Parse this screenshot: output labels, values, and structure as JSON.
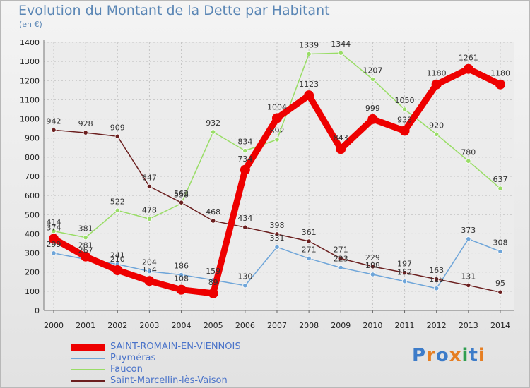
{
  "header": {
    "title": "Evolution du Montant de la Dette par Habitant",
    "subtitle": "(en €)"
  },
  "logo": {
    "text": "Proxiti",
    "colors": [
      "#3d7cc9",
      "#e67e22",
      "#3d7cc9",
      "#e67e22",
      "#2e9e4f",
      "#3d7cc9",
      "#e67e22"
    ]
  },
  "chart_data": {
    "type": "line",
    "title": "Evolution du Montant de la Dette par Habitant",
    "subtitle": "(en €)",
    "xlabel": "",
    "ylabel": "",
    "ylim": [
      0,
      1400
    ],
    "yticks": [
      0,
      100,
      200,
      300,
      400,
      500,
      600,
      700,
      800,
      900,
      1000,
      1100,
      1200,
      1300,
      1400
    ],
    "grid": true,
    "legend_position": "bottom-left",
    "x": [
      "2000",
      "2001",
      "2002",
      "2003",
      "2004",
      "2005",
      "2006",
      "2007",
      "2008",
      "2009",
      "2010",
      "2011",
      "2012",
      "2013",
      "2014"
    ],
    "series": [
      {
        "name": "SAINT-ROMAIN-EN-VIENNOIS",
        "color": "#ee0000",
        "width": 9,
        "marker": 7,
        "values": [
          374,
          281,
          210,
          154,
          108,
          89,
          734,
          1004,
          1123,
          843,
          999,
          938,
          1180,
          1261,
          1180
        ],
        "labels": [
          "374",
          "281",
          "210",
          "154",
          "108",
          "89",
          "734",
          "1004",
          "1123",
          "843",
          "999",
          "938",
          "1180",
          "1261",
          "1180"
        ]
      },
      {
        "name": "Puyméras",
        "color": "#6ea5d9",
        "width": 1.5,
        "marker": 3.2,
        "values": [
          299,
          267,
          241,
          204,
          186,
          159,
          130,
          331,
          271,
          223,
          188,
          152,
          115,
          373,
          308
        ],
        "labels": [
          "299",
          "267",
          "241",
          "204",
          "186",
          "159",
          "130",
          "331",
          "271",
          "223",
          "188",
          "152",
          "115",
          "373",
          "308"
        ]
      },
      {
        "name": "Faucon",
        "color": "#99dd66",
        "width": 1.5,
        "marker": 3.2,
        "values": [
          414,
          381,
          522,
          478,
          558,
          932,
          834,
          892,
          1339,
          1344,
          1207,
          1050,
          920,
          780,
          637
        ],
        "labels": [
          "414",
          "381",
          "522",
          "478",
          "558",
          "932",
          "834",
          "892",
          "1339",
          "1344",
          "1207",
          "1050",
          "920",
          "780",
          "637"
        ]
      },
      {
        "name": "Saint-Marcellin-lès-Vaison",
        "color": "#6b1f1f",
        "width": 1.5,
        "marker": 3.2,
        "values": [
          942,
          928,
          909,
          647,
          563,
          468,
          434,
          398,
          361,
          271,
          229,
          197,
          163,
          131,
          95
        ],
        "labels": [
          "942",
          "928",
          "909",
          "647",
          "563",
          "468",
          "434",
          "398",
          "361",
          "271",
          "229",
          "197",
          "163",
          "131",
          "95"
        ]
      }
    ]
  }
}
